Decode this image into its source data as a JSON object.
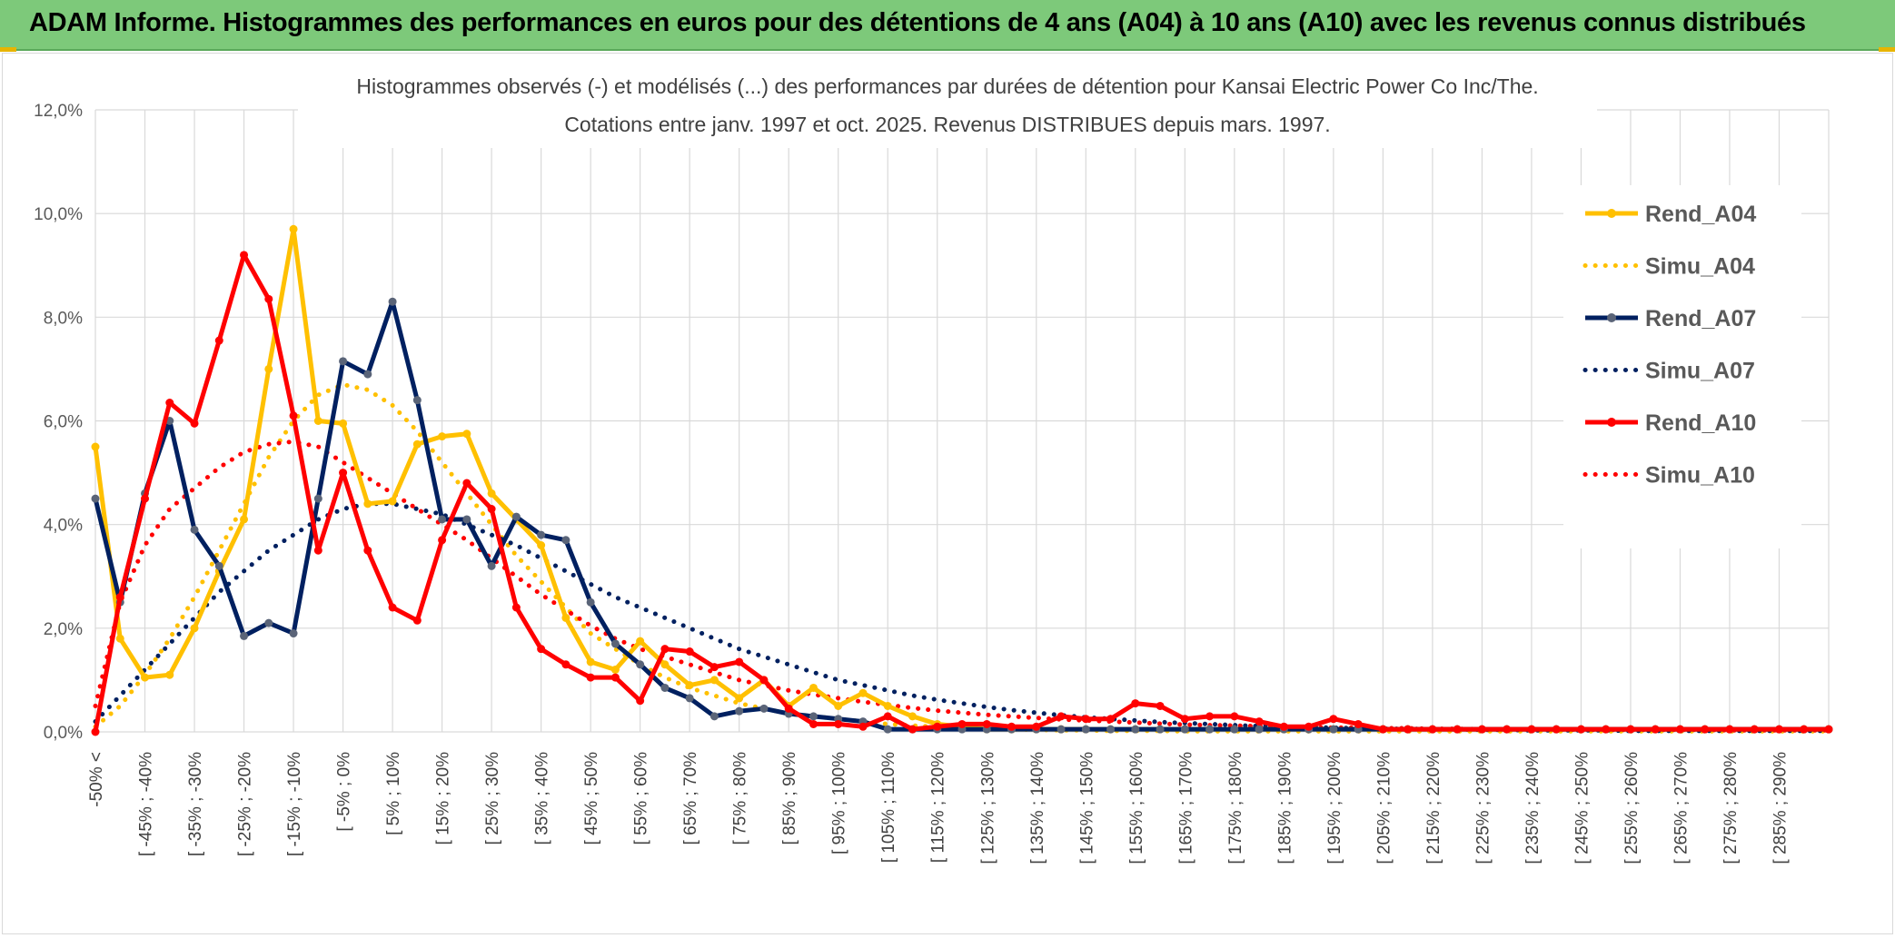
{
  "banner": {
    "title": "ADAM Informe. Histogrammes des performances en euros pour des détentions de 4 ans (A04) à 10 ans (A10) avec les revenus connus distribués"
  },
  "chart_data": {
    "type": "line",
    "title": "Histogrammes observés (-) et modélisés (...) des performances par durées de détention pour Kansai Electric Power Co Inc/The.",
    "subtitle": "Cotations entre janv. 1997 et oct. 2025. Revenus DISTRIBUES depuis mars. 1997.",
    "xlabel": "",
    "ylabel": "",
    "ylim": [
      0,
      12
    ],
    "y_ticks": [
      "0,0%",
      "2,0%",
      "4,0%",
      "6,0%",
      "8,0%",
      "10,0%",
      "12,0%"
    ],
    "grid": true,
    "legend_position": "right",
    "x_tick_labels": [
      "-50% <",
      "[ -45% ; -40%",
      "[ -35% ; -30%",
      "[ -25% ; -20%",
      "[ -15% ; -10%",
      "[ -5% ; 0%",
      "[ 5% ; 10%",
      "[ 15% ; 20%",
      "[ 25% ; 30%",
      "[ 35% ; 40%",
      "[ 45% ; 50%",
      "[ 55% ; 60%",
      "[ 65% ; 70%",
      "[ 75% ; 80%",
      "[ 85% ; 90%",
      "[ 95% ; 100%",
      "[ 105% ; 110%",
      "[ 115% ; 120%",
      "[ 125% ; 130%",
      "[ 135% ; 140%",
      "[ 145% ; 150%",
      "[ 155% ; 160%",
      "[ 165% ; 170%",
      "[ 175% ; 180%",
      "[ 185% ; 190%",
      "[ 195% ; 200%",
      "[ 205% ; 210%",
      "[ 215% ; 220%",
      "[ 225% ; 230%",
      "[ 235% ; 240%",
      "[ 245% ; 250%",
      "[ 255% ; 260%",
      "[ 265% ; 270%",
      "[ 275% ; 280%",
      "[ 285% ; 290%"
    ],
    "series": [
      {
        "name": "Rend_A04",
        "style": "solid",
        "color": "#ffc000",
        "values": [
          5.5,
          1.8,
          1.05,
          1.1,
          2.0,
          3.1,
          4.1,
          7.0,
          9.7,
          6.0,
          5.95,
          4.4,
          4.45,
          5.55,
          5.7,
          5.75,
          4.6,
          4.1,
          3.6,
          2.2,
          1.35,
          1.2,
          1.75,
          1.3,
          0.9,
          1.0,
          0.65,
          1.0,
          0.5,
          0.85,
          0.5,
          0.75,
          0.5,
          0.3,
          0.15,
          0.1,
          0.05,
          0.05,
          0.05,
          0.05,
          0.05,
          0.05,
          0.05,
          0.05,
          0.05,
          0.05,
          0.05,
          0.05,
          0.05,
          0.05,
          0.05,
          0.05,
          0.05,
          0.05,
          0.05,
          0.05,
          0.05,
          0.05,
          0.05,
          0.05,
          0.05,
          0.05,
          0.05,
          0.05,
          0.05,
          0.05,
          0.05,
          0.05,
          0.05,
          0.05,
          0.05
        ]
      },
      {
        "name": "Simu_A04",
        "style": "dotted",
        "color": "#ffc000",
        "values": [
          0.1,
          0.5,
          1.1,
          1.8,
          2.6,
          3.5,
          4.4,
          5.3,
          6.0,
          6.5,
          6.7,
          6.6,
          6.3,
          5.8,
          5.2,
          4.6,
          4.0,
          3.4,
          2.9,
          2.4,
          1.9,
          1.6,
          1.3,
          1.05,
          0.85,
          0.7,
          0.55,
          0.45,
          0.35,
          0.3,
          0.25,
          0.2,
          0.15,
          0.12,
          0.1,
          0.08,
          0.06,
          0.05,
          0.04,
          0.03,
          0.03,
          0.02,
          0.02,
          0.02,
          0.01,
          0.01,
          0.01,
          0.01,
          0.01,
          0.01,
          0.01,
          0.01,
          0.01,
          0.01,
          0.01,
          0.01,
          0.01,
          0.01,
          0.01,
          0.01,
          0.01,
          0.01,
          0.01,
          0.01,
          0.01,
          0.01,
          0.01,
          0.01,
          0.01,
          0.01,
          0.01
        ]
      },
      {
        "name": "Rend_A07",
        "style": "solid",
        "color": "#002060",
        "values": [
          4.5,
          2.5,
          4.6,
          6.0,
          3.9,
          3.2,
          1.85,
          2.1,
          1.9,
          4.5,
          7.15,
          6.9,
          8.3,
          6.4,
          4.1,
          4.1,
          3.2,
          4.15,
          3.8,
          3.7,
          2.5,
          1.7,
          1.3,
          0.85,
          0.65,
          0.3,
          0.4,
          0.45,
          0.35,
          0.3,
          0.25,
          0.2,
          0.05,
          0.05,
          0.05,
          0.05,
          0.05,
          0.05,
          0.05,
          0.05,
          0.05,
          0.05,
          0.05,
          0.05,
          0.05,
          0.05,
          0.05,
          0.05,
          0.05,
          0.05,
          0.05,
          0.05,
          0.05,
          0.05,
          0.05,
          0.05,
          0.05,
          0.05,
          0.05,
          0.05,
          0.05,
          0.05,
          0.05,
          0.05,
          0.05,
          0.05,
          0.05,
          0.05,
          0.05,
          0.05,
          0.05
        ]
      },
      {
        "name": "Simu_A07",
        "style": "dotted",
        "color": "#002060",
        "values": [
          0.2,
          0.7,
          1.2,
          1.7,
          2.2,
          2.7,
          3.1,
          3.5,
          3.8,
          4.1,
          4.3,
          4.4,
          4.4,
          4.3,
          4.2,
          4.0,
          3.8,
          3.6,
          3.35,
          3.1,
          2.85,
          2.6,
          2.4,
          2.2,
          2.0,
          1.8,
          1.6,
          1.45,
          1.3,
          1.15,
          1.0,
          0.9,
          0.8,
          0.7,
          0.62,
          0.55,
          0.48,
          0.42,
          0.37,
          0.32,
          0.28,
          0.25,
          0.22,
          0.19,
          0.17,
          0.15,
          0.13,
          0.11,
          0.1,
          0.09,
          0.08,
          0.07,
          0.06,
          0.06,
          0.05,
          0.05,
          0.04,
          0.04,
          0.03,
          0.03,
          0.03,
          0.03,
          0.02,
          0.02,
          0.02,
          0.02,
          0.02,
          0.02,
          0.02,
          0.02,
          0.02
        ]
      },
      {
        "name": "Rend_A10",
        "style": "solid",
        "color": "#ff0000",
        "values": [
          0.0,
          2.6,
          4.5,
          6.35,
          5.95,
          7.55,
          9.2,
          8.35,
          6.1,
          3.5,
          5.0,
          3.5,
          2.4,
          2.15,
          3.7,
          4.8,
          4.3,
          2.4,
          1.6,
          1.3,
          1.05,
          1.05,
          0.6,
          1.6,
          1.55,
          1.25,
          1.35,
          1.0,
          0.45,
          0.15,
          0.15,
          0.1,
          0.3,
          0.05,
          0.1,
          0.15,
          0.15,
          0.1,
          0.1,
          0.3,
          0.25,
          0.25,
          0.55,
          0.5,
          0.25,
          0.3,
          0.3,
          0.2,
          0.1,
          0.1,
          0.25,
          0.15,
          0.05,
          0.05,
          0.05,
          0.05,
          0.05,
          0.05,
          0.05,
          0.05,
          0.05,
          0.05,
          0.05,
          0.05,
          0.05,
          0.05,
          0.05,
          0.05,
          0.05,
          0.05,
          0.05
        ]
      },
      {
        "name": "Simu_A10",
        "style": "dotted",
        "color": "#ff0000",
        "values": [
          0.5,
          2.5,
          3.6,
          4.3,
          4.7,
          5.1,
          5.4,
          5.55,
          5.6,
          5.5,
          5.2,
          4.9,
          4.6,
          4.3,
          4.0,
          3.7,
          3.35,
          3.0,
          2.65,
          2.35,
          2.05,
          1.8,
          1.6,
          1.45,
          1.3,
          1.15,
          1.0,
          0.9,
          0.8,
          0.72,
          0.65,
          0.58,
          0.52,
          0.46,
          0.41,
          0.37,
          0.33,
          0.3,
          0.27,
          0.24,
          0.22,
          0.2,
          0.18,
          0.16,
          0.14,
          0.13,
          0.12,
          0.11,
          0.1,
          0.09,
          0.08,
          0.08,
          0.07,
          0.07,
          0.06,
          0.06,
          0.05,
          0.05,
          0.05,
          0.05,
          0.04,
          0.04,
          0.04,
          0.04,
          0.04,
          0.04,
          0.03,
          0.03,
          0.03,
          0.03,
          0.03
        ]
      }
    ]
  }
}
